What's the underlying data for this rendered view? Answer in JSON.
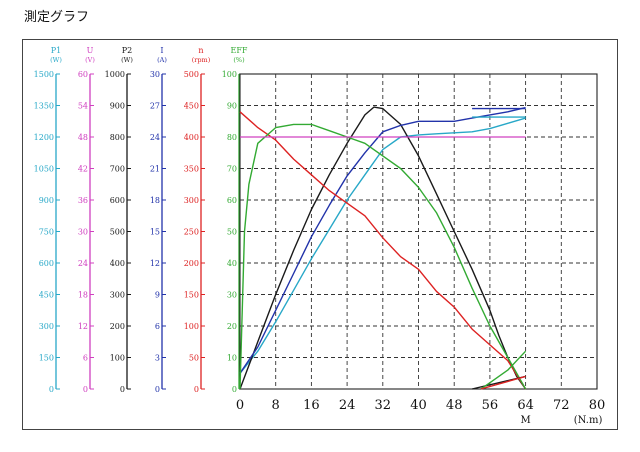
{
  "page_title": "測定グラフ",
  "chart_data": {
    "type": "line",
    "title": "",
    "x_axis": {
      "ticks": [
        "0",
        "8",
        "16",
        "24",
        "32",
        "40",
        "48",
        "56",
        "64",
        "72",
        "80"
      ],
      "range": [
        0,
        80
      ],
      "symbol": "M",
      "unit": "(N.m)"
    },
    "y_axes": [
      {
        "name": "P1",
        "unit": "(W)",
        "color": "#28a8c8",
        "range": [
          0,
          1500
        ],
        "ticks": [
          "0",
          "150",
          "300",
          "450",
          "600",
          "750",
          "900",
          "1050",
          "1200",
          "1350",
          "1500"
        ]
      },
      {
        "name": "U",
        "unit": "(V)",
        "color": "#d040c0",
        "range": [
          0,
          60
        ],
        "ticks": [
          "0",
          "6",
          "12",
          "18",
          "24",
          "30",
          "36",
          "42",
          "48",
          "54",
          "60"
        ]
      },
      {
        "name": "P2",
        "unit": "(W)",
        "color": "#1a1a1a",
        "range": [
          0,
          1000
        ],
        "ticks": [
          "0",
          "100",
          "200",
          "300",
          "400",
          "500",
          "600",
          "700",
          "800",
          "900",
          "1000"
        ]
      },
      {
        "name": "I",
        "unit": "(A)",
        "color": "#2233aa",
        "range": [
          0,
          30
        ],
        "ticks": [
          "0",
          "3",
          "6",
          "9",
          "12",
          "15",
          "18",
          "21",
          "24",
          "27",
          "30"
        ]
      },
      {
        "name": "n",
        "unit": "(rpm)",
        "color": "#dd2222",
        "range": [
          0,
          500
        ],
        "ticks": [
          "0",
          "50",
          "100",
          "150",
          "200",
          "250",
          "300",
          "350",
          "400",
          "450",
          "500"
        ]
      },
      {
        "name": "EFF",
        "unit": "(%)",
        "color": "#33aa33",
        "range": [
          0,
          100
        ],
        "ticks": [
          "0",
          "10",
          "20",
          "30",
          "40",
          "50",
          "60",
          "70",
          "80",
          "90",
          "100"
        ]
      }
    ],
    "series": [
      {
        "name": "P1",
        "axis": 0,
        "color": "#28a8c8",
        "style": "load",
        "points": [
          [
            0,
            75
          ],
          [
            4,
            180
          ],
          [
            8,
            320
          ],
          [
            12,
            470
          ],
          [
            16,
            620
          ],
          [
            20,
            760
          ],
          [
            24,
            900
          ],
          [
            28,
            1020
          ],
          [
            32,
            1140
          ],
          [
            36,
            1200
          ],
          [
            40,
            1210
          ],
          [
            44,
            1215
          ],
          [
            48,
            1220
          ],
          [
            52,
            1225
          ],
          [
            56,
            1240
          ],
          [
            60,
            1265
          ],
          [
            64,
            1290
          ]
        ]
      },
      {
        "name": "P2",
        "axis": 2,
        "color": "#1a1a1a",
        "style": "load",
        "points": [
          [
            0,
            0
          ],
          [
            4,
            150
          ],
          [
            8,
            300
          ],
          [
            12,
            440
          ],
          [
            16,
            570
          ],
          [
            20,
            680
          ],
          [
            24,
            780
          ],
          [
            28,
            870
          ],
          [
            30,
            895
          ],
          [
            32,
            890
          ],
          [
            36,
            840
          ],
          [
            40,
            740
          ],
          [
            44,
            620
          ],
          [
            48,
            500
          ],
          [
            52,
            380
          ],
          [
            56,
            250
          ],
          [
            58,
            170
          ],
          [
            60,
            100
          ],
          [
            62,
            40
          ],
          [
            64,
            0
          ]
        ]
      },
      {
        "name": "I",
        "axis": 3,
        "color": "#2233aa",
        "style": "load",
        "points": [
          [
            0,
            1.5
          ],
          [
            4,
            4
          ],
          [
            8,
            7.5
          ],
          [
            12,
            11
          ],
          [
            16,
            14.5
          ],
          [
            20,
            17.5
          ],
          [
            24,
            20.3
          ],
          [
            28,
            22.5
          ],
          [
            32,
            24.5
          ],
          [
            36,
            25.1
          ],
          [
            40,
            25.5
          ],
          [
            44,
            25.5
          ],
          [
            48,
            25.5
          ],
          [
            52,
            25.8
          ],
          [
            56,
            26.1
          ],
          [
            60,
            26.4
          ],
          [
            64,
            26.8
          ]
        ]
      },
      {
        "name": "n",
        "axis": 4,
        "color": "#dd2222",
        "style": "load",
        "points": [
          [
            0,
            440
          ],
          [
            4,
            415
          ],
          [
            8,
            395
          ],
          [
            12,
            365
          ],
          [
            16,
            340
          ],
          [
            20,
            315
          ],
          [
            24,
            295
          ],
          [
            28,
            275
          ],
          [
            32,
            240
          ],
          [
            36,
            210
          ],
          [
            40,
            190
          ],
          [
            44,
            155
          ],
          [
            48,
            130
          ],
          [
            52,
            95
          ],
          [
            56,
            70
          ],
          [
            60,
            45
          ],
          [
            64,
            0
          ]
        ]
      },
      {
        "name": "EFF",
        "axis": 5,
        "color": "#33aa33",
        "style": "load",
        "points": [
          [
            0,
            0
          ],
          [
            1,
            50
          ],
          [
            2,
            65
          ],
          [
            4,
            78
          ],
          [
            8,
            83
          ],
          [
            12,
            84
          ],
          [
            16,
            84
          ],
          [
            20,
            82
          ],
          [
            24,
            80
          ],
          [
            28,
            78
          ],
          [
            32,
            74
          ],
          [
            36,
            70
          ],
          [
            40,
            64
          ],
          [
            44,
            56
          ],
          [
            48,
            45
          ],
          [
            52,
            32
          ],
          [
            56,
            20
          ],
          [
            60,
            10
          ],
          [
            64,
            0
          ]
        ]
      },
      {
        "name": "U",
        "axis": 1,
        "color": "#d040c0",
        "style": "load",
        "points": [
          [
            0,
            48
          ],
          [
            64,
            48
          ]
        ]
      },
      {
        "name": "I-max",
        "axis": 3,
        "color": "#2233aa",
        "style": "flat",
        "points": [
          [
            52,
            26.7
          ],
          [
            64,
            26.7
          ]
        ]
      },
      {
        "name": "P1-max",
        "axis": 0,
        "color": "#28a8c8",
        "style": "flat",
        "points": [
          [
            52,
            1295
          ],
          [
            64,
            1295
          ]
        ]
      },
      {
        "name": "stall-black",
        "axis": 2,
        "color": "#1a1a1a",
        "style": "stall",
        "points": [
          [
            52,
            0
          ],
          [
            64,
            40
          ]
        ]
      },
      {
        "name": "stall-green",
        "axis": 5,
        "color": "#33aa33",
        "style": "stall",
        "points": [
          [
            54,
            0
          ],
          [
            60,
            6
          ],
          [
            64,
            12
          ]
        ]
      },
      {
        "name": "stall-red",
        "axis": 4,
        "color": "#dd2222",
        "style": "stall",
        "points": [
          [
            54,
            0
          ],
          [
            64,
            20
          ]
        ]
      }
    ],
    "grid": true
  }
}
